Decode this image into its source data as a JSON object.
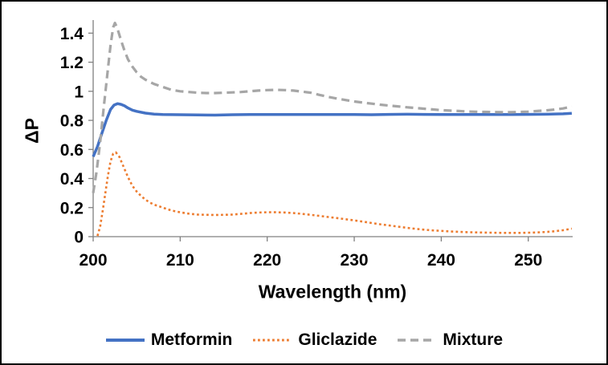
{
  "chart_data": {
    "type": "line",
    "title": "",
    "xlabel": "Wavelength (nm)",
    "ylabel": "ΔP",
    "xlim": [
      200,
      255.1
    ],
    "ylim": [
      0,
      1.49
    ],
    "x_ticks": [
      200,
      210,
      220,
      230,
      240,
      250
    ],
    "y_ticks": [
      [
        0,
        "0"
      ],
      [
        0.2,
        "0.2"
      ],
      [
        0.4,
        "0.4"
      ],
      [
        0.6,
        "0.6"
      ],
      [
        0.8,
        "0.8"
      ],
      [
        1,
        "1"
      ],
      [
        1.2,
        "1.2"
      ],
      [
        1.4,
        "1.4"
      ]
    ],
    "grid": false,
    "legend_position": "bottom",
    "axis_color": "#808080",
    "text_color": "#000000",
    "series": [
      {
        "name": "Metformin",
        "color": "#4472C4",
        "style": "solid",
        "points": [
          [
            200,
            0.55
          ],
          [
            200.5,
            0.62
          ],
          [
            201,
            0.71
          ],
          [
            201.5,
            0.8
          ],
          [
            202,
            0.875
          ],
          [
            202.4,
            0.905
          ],
          [
            202.8,
            0.915
          ],
          [
            203.2,
            0.91
          ],
          [
            203.6,
            0.9
          ],
          [
            204,
            0.885
          ],
          [
            204.5,
            0.87
          ],
          [
            205,
            0.862
          ],
          [
            206,
            0.85
          ],
          [
            207,
            0.843
          ],
          [
            208,
            0.84
          ],
          [
            210,
            0.839
          ],
          [
            212,
            0.837
          ],
          [
            214,
            0.836
          ],
          [
            216,
            0.839
          ],
          [
            218,
            0.84
          ],
          [
            220,
            0.84
          ],
          [
            222,
            0.84
          ],
          [
            224,
            0.84
          ],
          [
            226,
            0.84
          ],
          [
            228,
            0.84
          ],
          [
            230,
            0.84
          ],
          [
            232,
            0.839
          ],
          [
            234,
            0.841
          ],
          [
            236,
            0.842
          ],
          [
            238,
            0.841
          ],
          [
            240,
            0.84
          ],
          [
            242,
            0.84
          ],
          [
            244,
            0.84
          ],
          [
            246,
            0.84
          ],
          [
            248,
            0.84
          ],
          [
            250,
            0.841
          ],
          [
            252,
            0.842
          ],
          [
            254,
            0.845
          ],
          [
            255,
            0.848
          ]
        ]
      },
      {
        "name": "Gliclazide",
        "color": "#ED7D31",
        "style": "dotted",
        "points": [
          [
            200.5,
            0.005
          ],
          [
            200.8,
            0.07
          ],
          [
            201.1,
            0.18
          ],
          [
            201.4,
            0.3
          ],
          [
            201.7,
            0.42
          ],
          [
            202,
            0.52
          ],
          [
            202.3,
            0.57
          ],
          [
            202.6,
            0.58
          ],
          [
            203,
            0.55
          ],
          [
            203.5,
            0.48
          ],
          [
            204,
            0.41
          ],
          [
            204.5,
            0.35
          ],
          [
            205,
            0.31
          ],
          [
            205.5,
            0.28
          ],
          [
            206,
            0.255
          ],
          [
            206.5,
            0.235
          ],
          [
            207,
            0.22
          ],
          [
            207.5,
            0.21
          ],
          [
            208,
            0.2
          ],
          [
            209,
            0.18
          ],
          [
            210,
            0.168
          ],
          [
            211,
            0.158
          ],
          [
            212,
            0.152
          ],
          [
            213,
            0.15
          ],
          [
            214,
            0.149
          ],
          [
            215,
            0.15
          ],
          [
            216,
            0.152
          ],
          [
            217,
            0.157
          ],
          [
            218,
            0.162
          ],
          [
            219,
            0.166
          ],
          [
            220,
            0.168
          ],
          [
            221,
            0.168
          ],
          [
            222,
            0.166
          ],
          [
            223,
            0.162
          ],
          [
            224,
            0.157
          ],
          [
            225,
            0.15
          ],
          [
            226,
            0.143
          ],
          [
            227,
            0.135
          ],
          [
            228,
            0.128
          ],
          [
            229,
            0.12
          ],
          [
            230,
            0.112
          ],
          [
            231,
            0.103
          ],
          [
            232,
            0.094
          ],
          [
            233,
            0.085
          ],
          [
            234,
            0.077
          ],
          [
            235,
            0.069
          ],
          [
            236,
            0.061
          ],
          [
            237,
            0.054
          ],
          [
            238,
            0.048
          ],
          [
            239,
            0.043
          ],
          [
            240,
            0.04
          ],
          [
            241,
            0.036
          ],
          [
            242,
            0.033
          ],
          [
            243,
            0.031
          ],
          [
            244,
            0.029
          ],
          [
            245,
            0.028
          ],
          [
            246,
            0.027
          ],
          [
            247,
            0.026
          ],
          [
            248,
            0.026
          ],
          [
            249,
            0.026
          ],
          [
            250,
            0.027
          ],
          [
            251,
            0.029
          ],
          [
            252,
            0.032
          ],
          [
            253,
            0.037
          ],
          [
            254,
            0.044
          ],
          [
            255,
            0.055
          ]
        ]
      },
      {
        "name": "Mixture",
        "color": "#A6A6A6",
        "style": "dashed",
        "points": [
          [
            200,
            0.3
          ],
          [
            200.4,
            0.45
          ],
          [
            200.8,
            0.65
          ],
          [
            201.2,
            0.88
          ],
          [
            201.6,
            1.1
          ],
          [
            202,
            1.32
          ],
          [
            202.3,
            1.44
          ],
          [
            202.5,
            1.47
          ],
          [
            202.8,
            1.43
          ],
          [
            203.2,
            1.35
          ],
          [
            203.6,
            1.28
          ],
          [
            204,
            1.22
          ],
          [
            204.5,
            1.17
          ],
          [
            205,
            1.13
          ],
          [
            205.5,
            1.1
          ],
          [
            206,
            1.08
          ],
          [
            207,
            1.05
          ],
          [
            208,
            1.03
          ],
          [
            209,
            1.01
          ],
          [
            210,
            1.0
          ],
          [
            211,
            0.995
          ],
          [
            212,
            0.99
          ],
          [
            213,
            0.988
          ],
          [
            214,
            0.988
          ],
          [
            215,
            0.99
          ],
          [
            216,
            0.992
          ],
          [
            217,
            0.995
          ],
          [
            218,
            1.0
          ],
          [
            219,
            1.005
          ],
          [
            220,
            1.008
          ],
          [
            221,
            1.01
          ],
          [
            222,
            1.008
          ],
          [
            223,
            1.005
          ],
          [
            224,
            0.998
          ],
          [
            225,
            0.99
          ],
          [
            226,
            0.975
          ],
          [
            227,
            0.962
          ],
          [
            228,
            0.95
          ],
          [
            229,
            0.94
          ],
          [
            230,
            0.93
          ],
          [
            231,
            0.922
          ],
          [
            232,
            0.915
          ],
          [
            233,
            0.908
          ],
          [
            234,
            0.902
          ],
          [
            235,
            0.896
          ],
          [
            236,
            0.89
          ],
          [
            237,
            0.885
          ],
          [
            238,
            0.88
          ],
          [
            239,
            0.875
          ],
          [
            240,
            0.87
          ],
          [
            241,
            0.867
          ],
          [
            242,
            0.864
          ],
          [
            243,
            0.861
          ],
          [
            244,
            0.859
          ],
          [
            245,
            0.858
          ],
          [
            246,
            0.857
          ],
          [
            247,
            0.856
          ],
          [
            248,
            0.856
          ],
          [
            249,
            0.858
          ],
          [
            250,
            0.86
          ],
          [
            251,
            0.864
          ],
          [
            252,
            0.868
          ],
          [
            253,
            0.874
          ],
          [
            254,
            0.882
          ],
          [
            255,
            0.895
          ]
        ]
      }
    ]
  }
}
